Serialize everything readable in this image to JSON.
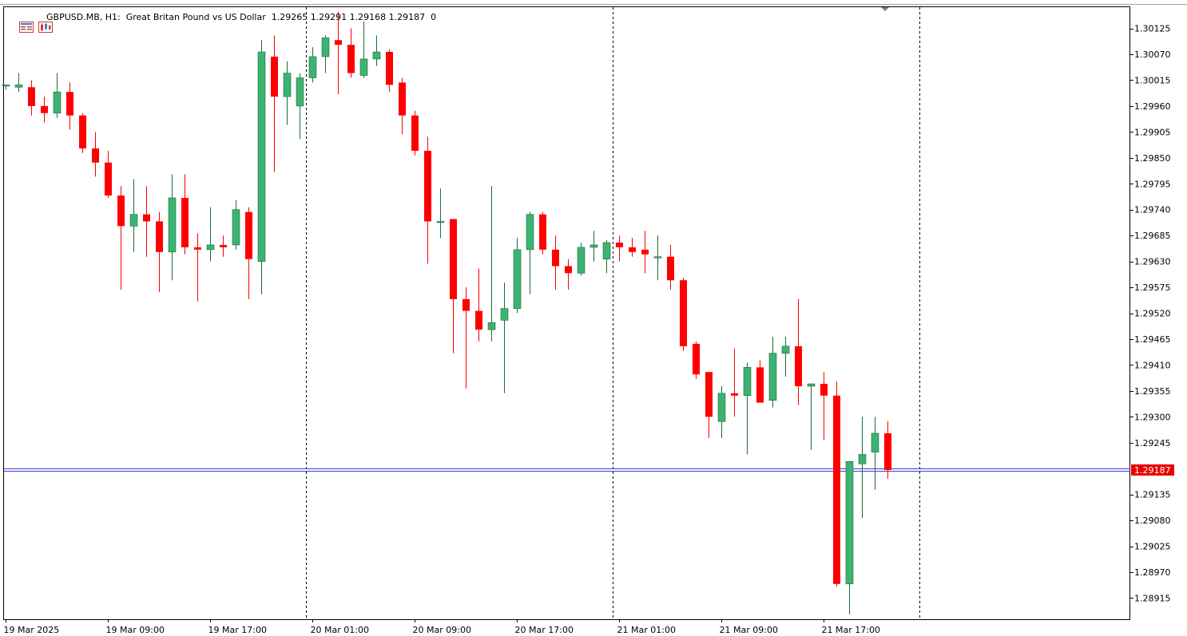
{
  "header": {
    "symbol_text": "GBPUSD.MB, H1:  Great Britan Pound vs US Dollar  1.29265 1.29291 1.29168 1.29187  0",
    "icons": [
      "window-list-icon",
      "chart-properties-icon"
    ]
  },
  "colors": {
    "bull": "#3cb371",
    "bull_edge": "#1e6b3a",
    "bear": "#ff0000",
    "bear_edge": "#c00000",
    "grid": "#000000",
    "price_line": "#3b3bd6",
    "price_tag_bg": "#e80000",
    "background": "#ffffff"
  },
  "chart_data": {
    "type": "candlestick",
    "symbol": "GBPUSD.MB",
    "timeframe": "H1",
    "ylim": [
      1.2887,
      1.3017
    ],
    "price_ticks": [
      "1.30125",
      "1.30070",
      "1.30015",
      "1.29960",
      "1.29905",
      "1.29850",
      "1.29795",
      "1.29740",
      "1.29685",
      "1.29630",
      "1.29575",
      "1.29520",
      "1.29465",
      "1.29410",
      "1.29355",
      "1.29300",
      "1.29245",
      "1.29135",
      "1.29080",
      "1.29025",
      "1.28970",
      "1.28915"
    ],
    "time_ticks": [
      "19 Mar 2025",
      "19 Mar 09:00",
      "19 Mar 17:00",
      "20 Mar 01:00",
      "20 Mar 09:00",
      "20 Mar 17:00",
      "21 Mar 01:00",
      "21 Mar 09:00",
      "21 Mar 17:00"
    ],
    "time_tick_index": [
      0,
      8,
      16,
      24,
      32,
      40,
      48,
      56,
      64
    ],
    "period_separators_index": [
      23,
      47,
      71
    ],
    "current_price": "1.29187",
    "candles": [
      {
        "o": 1.30005,
        "h": 1.30005,
        "l": 1.29995,
        "c": 1.30005
      },
      {
        "o": 1.3,
        "h": 1.3003,
        "l": 1.2999,
        "c": 1.30005
      },
      {
        "o": 1.3,
        "h": 1.30015,
        "l": 1.2994,
        "c": 1.2996
      },
      {
        "o": 1.2996,
        "h": 1.2998,
        "l": 1.29925,
        "c": 1.29945
      },
      {
        "o": 1.29945,
        "h": 1.3003,
        "l": 1.29935,
        "c": 1.2999
      },
      {
        "o": 1.2999,
        "h": 1.3001,
        "l": 1.2991,
        "c": 1.2994
      },
      {
        "o": 1.2994,
        "h": 1.29945,
        "l": 1.2986,
        "c": 1.2987
      },
      {
        "o": 1.2987,
        "h": 1.29905,
        "l": 1.2981,
        "c": 1.2984
      },
      {
        "o": 1.2984,
        "h": 1.29865,
        "l": 1.29765,
        "c": 1.2977
      },
      {
        "o": 1.2977,
        "h": 1.2979,
        "l": 1.2957,
        "c": 1.29705
      },
      {
        "o": 1.29705,
        "h": 1.29805,
        "l": 1.2965,
        "c": 1.2973
      },
      {
        "o": 1.2973,
        "h": 1.2979,
        "l": 1.2964,
        "c": 1.29715
      },
      {
        "o": 1.29715,
        "h": 1.29735,
        "l": 1.29565,
        "c": 1.2965
      },
      {
        "o": 1.2965,
        "h": 1.29815,
        "l": 1.2959,
        "c": 1.29765
      },
      {
        "o": 1.29765,
        "h": 1.29815,
        "l": 1.29645,
        "c": 1.2966
      },
      {
        "o": 1.2966,
        "h": 1.2969,
        "l": 1.29545,
        "c": 1.29655
      },
      {
        "o": 1.29655,
        "h": 1.29745,
        "l": 1.2963,
        "c": 1.29665
      },
      {
        "o": 1.29665,
        "h": 1.29685,
        "l": 1.2964,
        "c": 1.2966
      },
      {
        "o": 1.29665,
        "h": 1.2976,
        "l": 1.29655,
        "c": 1.2974
      },
      {
        "o": 1.29735,
        "h": 1.29745,
        "l": 1.2955,
        "c": 1.29635
      },
      {
        "o": 1.2963,
        "h": 1.301,
        "l": 1.2956,
        "c": 1.30075
      },
      {
        "o": 1.30065,
        "h": 1.3011,
        "l": 1.2982,
        "c": 1.2998
      },
      {
        "o": 1.2998,
        "h": 1.30055,
        "l": 1.2992,
        "c": 1.3003
      },
      {
        "o": 1.2996,
        "h": 1.3003,
        "l": 1.2989,
        "c": 1.3002
      },
      {
        "o": 1.3002,
        "h": 1.30085,
        "l": 1.3001,
        "c": 1.30065
      },
      {
        "o": 1.30065,
        "h": 1.3011,
        "l": 1.3003,
        "c": 1.30105
      },
      {
        "o": 1.301,
        "h": 1.3016,
        "l": 1.29985,
        "c": 1.3009
      },
      {
        "o": 1.3009,
        "h": 1.30125,
        "l": 1.3002,
        "c": 1.3003
      },
      {
        "o": 1.30025,
        "h": 1.3014,
        "l": 1.3002,
        "c": 1.3006
      },
      {
        "o": 1.3006,
        "h": 1.3011,
        "l": 1.30045,
        "c": 1.30075
      },
      {
        "o": 1.30075,
        "h": 1.3008,
        "l": 1.2999,
        "c": 1.30005
      },
      {
        "o": 1.3001,
        "h": 1.3002,
        "l": 1.299,
        "c": 1.2994
      },
      {
        "o": 1.2994,
        "h": 1.2995,
        "l": 1.29855,
        "c": 1.29865
      },
      {
        "o": 1.29865,
        "h": 1.29895,
        "l": 1.29625,
        "c": 1.29715
      },
      {
        "o": 1.29715,
        "h": 1.29785,
        "l": 1.2968,
        "c": 1.29715
      },
      {
        "o": 1.2972,
        "h": 1.2972,
        "l": 1.29435,
        "c": 1.2955
      },
      {
        "o": 1.2955,
        "h": 1.29575,
        "l": 1.2936,
        "c": 1.29525
      },
      {
        "o": 1.29525,
        "h": 1.29615,
        "l": 1.2946,
        "c": 1.29485
      },
      {
        "o": 1.29485,
        "h": 1.2979,
        "l": 1.2946,
        "c": 1.295
      },
      {
        "o": 1.29505,
        "h": 1.29585,
        "l": 1.2935,
        "c": 1.2953
      },
      {
        "o": 1.2953,
        "h": 1.2968,
        "l": 1.2952,
        "c": 1.29655
      },
      {
        "o": 1.29655,
        "h": 1.29735,
        "l": 1.2956,
        "c": 1.2973
      },
      {
        "o": 1.2973,
        "h": 1.29735,
        "l": 1.29645,
        "c": 1.29655
      },
      {
        "o": 1.29655,
        "h": 1.29685,
        "l": 1.2957,
        "c": 1.2962
      },
      {
        "o": 1.2962,
        "h": 1.29635,
        "l": 1.2957,
        "c": 1.29605
      },
      {
        "o": 1.29605,
        "h": 1.2967,
        "l": 1.296,
        "c": 1.2966
      },
      {
        "o": 1.2966,
        "h": 1.29695,
        "l": 1.2963,
        "c": 1.29665
      },
      {
        "o": 1.29635,
        "h": 1.29675,
        "l": 1.29605,
        "c": 1.2967
      },
      {
        "o": 1.2967,
        "h": 1.29685,
        "l": 1.2963,
        "c": 1.2966
      },
      {
        "o": 1.2966,
        "h": 1.2968,
        "l": 1.2964,
        "c": 1.2965
      },
      {
        "o": 1.29655,
        "h": 1.29695,
        "l": 1.29605,
        "c": 1.29645
      },
      {
        "o": 1.2964,
        "h": 1.29685,
        "l": 1.2959,
        "c": 1.2964
      },
      {
        "o": 1.2964,
        "h": 1.29665,
        "l": 1.2957,
        "c": 1.2959
      },
      {
        "o": 1.2959,
        "h": 1.29595,
        "l": 1.2944,
        "c": 1.2945
      },
      {
        "o": 1.29455,
        "h": 1.2946,
        "l": 1.2938,
        "c": 1.2939
      },
      {
        "o": 1.29395,
        "h": 1.29395,
        "l": 1.29255,
        "c": 1.293
      },
      {
        "o": 1.2929,
        "h": 1.29365,
        "l": 1.29255,
        "c": 1.2935
      },
      {
        "o": 1.2935,
        "h": 1.29445,
        "l": 1.293,
        "c": 1.29345
      },
      {
        "o": 1.29345,
        "h": 1.29415,
        "l": 1.2922,
        "c": 1.29405
      },
      {
        "o": 1.29405,
        "h": 1.2942,
        "l": 1.2933,
        "c": 1.2933
      },
      {
        "o": 1.29335,
        "h": 1.2947,
        "l": 1.2932,
        "c": 1.29435
      },
      {
        "o": 1.29435,
        "h": 1.2947,
        "l": 1.29385,
        "c": 1.2945
      },
      {
        "o": 1.2945,
        "h": 1.2955,
        "l": 1.29325,
        "c": 1.29365
      },
      {
        "o": 1.29365,
        "h": 1.2937,
        "l": 1.2923,
        "c": 1.2937
      },
      {
        "o": 1.2937,
        "h": 1.29395,
        "l": 1.2925,
        "c": 1.29345
      },
      {
        "o": 1.29345,
        "h": 1.29375,
        "l": 1.2894,
        "c": 1.28945
      },
      {
        "o": 1.28945,
        "h": 1.29205,
        "l": 1.2888,
        "c": 1.29205
      },
      {
        "o": 1.292,
        "h": 1.293,
        "l": 1.29085,
        "c": 1.2922
      },
      {
        "o": 1.29225,
        "h": 1.293,
        "l": 1.29145,
        "c": 1.29265
      },
      {
        "o": 1.29265,
        "h": 1.29291,
        "l": 1.29168,
        "c": 1.29187
      }
    ]
  }
}
